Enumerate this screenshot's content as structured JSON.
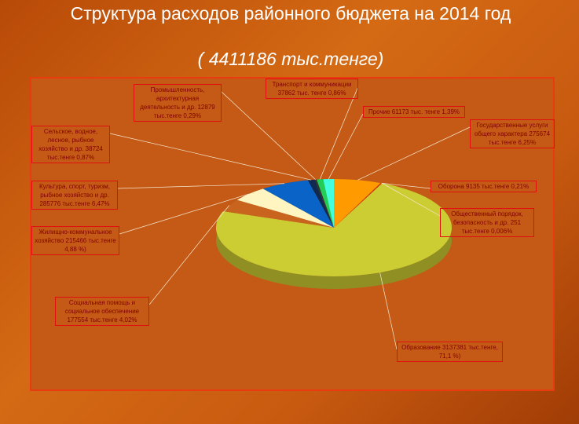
{
  "chart_data": {
    "type": "pie",
    "title": "Структура расходов районного бюджета на 2014 год",
    "subtitle": "( 4411186 тыс.тенге)",
    "categories": [
      "Государственные услуги общего характера 275674 тыс.тенге 6,25%",
      "Оборона 9135 тыс.тенге 0,21%",
      "Общественный порядок, безопасность и др. 251 тыс.тенге 0,006%",
      "Образование 3137381 тыс.тенге, 71,1 %)",
      "Социальная помощь и социальное обеспечение 177554 тыс.тенге 4,02%",
      "Жилищно-коммунальное хозяйство 215466 тыс.тенге 4,88 %)",
      "Культура, спорт, туризм, рыбное хозяйство и др. 285776 тыс.тенге 6,47%",
      "Сельское, водное, лесное, рыбное хозяйство и др. 38724 тыс.тенге 0,87%",
      "Промышленность, архитектурная деятельность и др. 12879 тыс.тенге 0,29%",
      "Транспорт и коммуникации 37862 тыс. тенге 0,86%",
      "Прочие 61173 тыс. тенге 1,39%"
    ],
    "values": [
      6.25,
      0.21,
      0.006,
      71.1,
      4.02,
      4.88,
      6.47,
      0.87,
      0.29,
      0.86,
      1.39
    ],
    "colors": [
      "#ff9a00",
      "#cc3300",
      "#993300",
      "#cccc33",
      "#c8641e",
      "#fff5c0",
      "#0a64c8",
      "#102a50",
      "#333333",
      "#22cc55",
      "#44ffdd"
    ]
  }
}
